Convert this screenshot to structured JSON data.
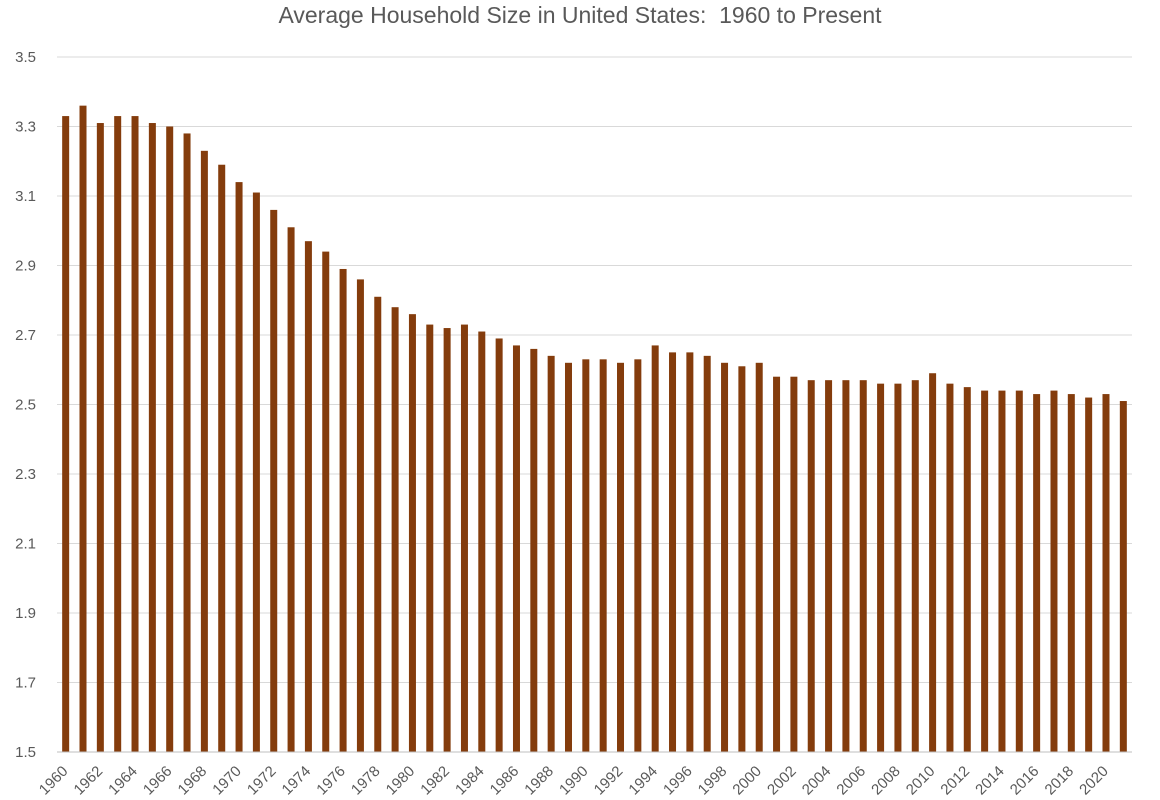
{
  "chart_data": {
    "type": "bar",
    "title": "Average Household Size in United States:  1960 to Present",
    "xlabel": "",
    "ylabel": "",
    "ylim": [
      1.5,
      3.5
    ],
    "yticks": [
      "3.5",
      "3.3",
      "3.1",
      "2.9",
      "2.7",
      "2.5",
      "2.3",
      "2.1",
      "1.9",
      "1.7",
      "1.5"
    ],
    "grid": true,
    "legend": "none",
    "bar_color": "#843C0C",
    "categories": [
      "1960",
      "1961",
      "1962",
      "1963",
      "1964",
      "1965",
      "1966",
      "1967",
      "1968",
      "1969",
      "1970",
      "1971",
      "1972",
      "1973",
      "1974",
      "1975",
      "1976",
      "1977",
      "1978",
      "1979",
      "1980",
      "1981",
      "1982",
      "1983",
      "1984",
      "1985",
      "1986",
      "1987",
      "1988",
      "1989",
      "1990",
      "1991",
      "1992",
      "1993",
      "1994",
      "1995",
      "1996",
      "1997",
      "1998",
      "1999",
      "2000",
      "2001",
      "2002",
      "2003",
      "2004",
      "2005",
      "2006",
      "2007",
      "2008",
      "2009",
      "2010",
      "2011",
      "2012",
      "2013",
      "2014",
      "2015",
      "2016",
      "2017",
      "2018",
      "2019",
      "2020",
      "2021"
    ],
    "xtick_labels": [
      "1960",
      "1962",
      "1964",
      "1966",
      "1968",
      "1970",
      "1972",
      "1974",
      "1976",
      "1978",
      "1980",
      "1982",
      "1984",
      "1986",
      "1988",
      "1990",
      "1992",
      "1994",
      "1996",
      "1998",
      "2000",
      "2002",
      "2004",
      "2006",
      "2008",
      "2010",
      "2012",
      "2014",
      "2016",
      "2018",
      "2020"
    ],
    "values": [
      3.33,
      3.36,
      3.31,
      3.33,
      3.33,
      3.31,
      3.3,
      3.28,
      3.23,
      3.19,
      3.14,
      3.11,
      3.06,
      3.01,
      2.97,
      2.94,
      2.89,
      2.86,
      2.81,
      2.78,
      2.76,
      2.73,
      2.72,
      2.73,
      2.71,
      2.69,
      2.67,
      2.66,
      2.64,
      2.62,
      2.63,
      2.63,
      2.62,
      2.63,
      2.67,
      2.65,
      2.65,
      2.64,
      2.62,
      2.61,
      2.62,
      2.58,
      2.58,
      2.57,
      2.57,
      2.57,
      2.57,
      2.56,
      2.56,
      2.57,
      2.59,
      2.56,
      2.55,
      2.54,
      2.54,
      2.54,
      2.53,
      2.54,
      2.53,
      2.52,
      2.53,
      2.51
    ]
  }
}
